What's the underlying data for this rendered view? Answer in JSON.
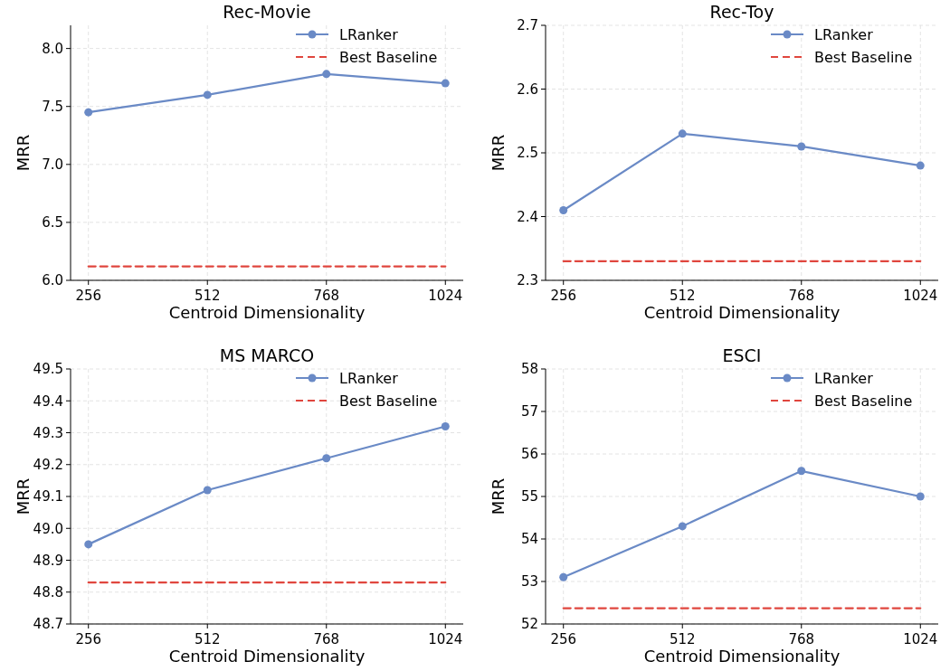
{
  "chart_data": [
    {
      "type": "line",
      "title": "Rec-Movie",
      "xlabel": "Centroid Dimensionality",
      "ylabel": "MRR",
      "x": [
        256,
        512,
        768,
        1024
      ],
      "xlim": [
        217.6,
        1062.4
      ],
      "xticks": [
        256,
        512,
        768,
        1024
      ],
      "ylim": [
        6.0,
        8.2
      ],
      "yticks": [
        {
          "value": 6.0,
          "label": "6.0"
        },
        {
          "value": 6.5,
          "label": "6.5"
        },
        {
          "value": 7.0,
          "label": "7.0"
        },
        {
          "value": 7.5,
          "label": "7.5"
        },
        {
          "value": 8.0,
          "label": "8.0"
        }
      ],
      "grid": true,
      "legend": "top right",
      "series": [
        {
          "name": "LRanker",
          "color": "#6a8ac6",
          "values": [
            7.45,
            7.6,
            7.78,
            7.7
          ],
          "marker": "circle",
          "line_style": "solid"
        },
        {
          "name": "Best Baseline",
          "color": "#e0463e",
          "values": [
            6.12,
            6.12,
            6.12,
            6.12
          ],
          "marker": "none",
          "line_style": "dashed"
        }
      ]
    },
    {
      "type": "line",
      "title": "Rec-Toy",
      "xlabel": "Centroid Dimensionality",
      "ylabel": "MRR",
      "x": [
        256,
        512,
        768,
        1024
      ],
      "xlim": [
        217.6,
        1062.4
      ],
      "xticks": [
        256,
        512,
        768,
        1024
      ],
      "ylim": [
        2.3,
        2.7
      ],
      "yticks": [
        2.3,
        2.4,
        2.5,
        2.6,
        2.7
      ],
      "grid": true,
      "legend": "top right",
      "series": [
        {
          "name": "LRanker",
          "color": "#6a8ac6",
          "values": [
            2.41,
            2.53,
            2.51,
            2.48
          ],
          "marker": "circle",
          "line_style": "solid"
        },
        {
          "name": "Best Baseline",
          "color": "#e0463e",
          "values": [
            2.33,
            2.33,
            2.33,
            2.33
          ],
          "marker": "none",
          "line_style": "dashed"
        }
      ]
    },
    {
      "type": "line",
      "title": "MS MARCO",
      "xlabel": "Centroid Dimensionality",
      "ylabel": "MRR",
      "x": [
        256,
        512,
        768,
        1024
      ],
      "xlim": [
        217.6,
        1062.4
      ],
      "xticks": [
        256,
        512,
        768,
        1024
      ],
      "ylim": [
        48.7,
        49.5
      ],
      "yticks": [
        48.7,
        48.8,
        48.9,
        {
          "value": 49.0,
          "label": "49.0"
        },
        49.1,
        49.2,
        49.3,
        49.4,
        49.5
      ],
      "grid": true,
      "legend": "top right",
      "series": [
        {
          "name": "LRanker",
          "color": "#6a8ac6",
          "values": [
            48.95,
            49.12,
            49.22,
            49.32
          ],
          "marker": "circle",
          "line_style": "solid"
        },
        {
          "name": "Best Baseline",
          "color": "#e0463e",
          "values": [
            48.83,
            48.83,
            48.83,
            48.83
          ],
          "marker": "none",
          "line_style": "dashed"
        }
      ]
    },
    {
      "type": "line",
      "title": "ESCI",
      "xlabel": "Centroid Dimensionality",
      "ylabel": "MRR",
      "x": [
        256,
        512,
        768,
        1024
      ],
      "xlim": [
        217.6,
        1062.4
      ],
      "xticks": [
        256,
        512,
        768,
        1024
      ],
      "ylim": [
        52,
        58
      ],
      "yticks": [
        52,
        53,
        54,
        55,
        56,
        57,
        58
      ],
      "grid": true,
      "legend": "top right",
      "series": [
        {
          "name": "LRanker",
          "color": "#6a8ac6",
          "values": [
            53.1,
            54.3,
            55.6,
            55.0
          ],
          "marker": "circle",
          "line_style": "solid"
        },
        {
          "name": "Best Baseline",
          "color": "#e0463e",
          "values": [
            52.37,
            52.37,
            52.37,
            52.37
          ],
          "marker": "none",
          "line_style": "dashed"
        }
      ]
    }
  ]
}
